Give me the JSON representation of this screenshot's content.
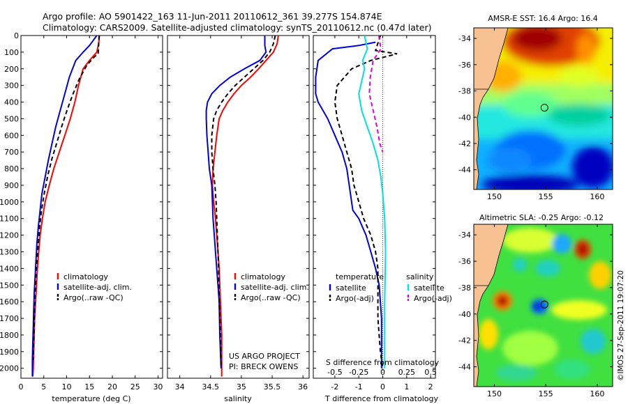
{
  "header": {
    "line1": "Argo profile: AO 5901422_163 11-Jun-2011 20110612_361 39.277S 154.874E",
    "line2": "Climatology: CARS2009. Satellite-adjusted climatology: synTS_20110612.nc (0.47d later)"
  },
  "side_credit": "©IMOS 27-Sep-2011 19:07:20",
  "colors": {
    "climatology": "#ff0000",
    "satellite": "#0000dd",
    "argo": "#000000",
    "salinity_satellite": "#00e0e0",
    "salinity_argo": "#dd00dd",
    "land": "#f7c192"
  },
  "chart_data": [
    {
      "id": "temperature",
      "type": "line",
      "xlabel": "temperature (deg C)",
      "xlim": [
        0,
        31
      ],
      "ylim": [
        0,
        2060
      ],
      "y_reversed": true,
      "xticks": [
        0,
        5,
        10,
        15,
        20,
        25,
        30
      ],
      "yticks": [
        0,
        100,
        200,
        300,
        400,
        500,
        600,
        700,
        800,
        900,
        1000,
        1100,
        1200,
        1300,
        1400,
        1500,
        1600,
        1700,
        1800,
        1900,
        2000
      ],
      "legend": {
        "placement": "lower-center",
        "entries": [
          "climatology",
          "satellite-adj. clim.",
          "Argo(..raw -QC)"
        ]
      },
      "series": [
        {
          "name": "climatology",
          "color": "#ff0000",
          "dash": "solid",
          "x": [
            17.2,
            17.0,
            16.6,
            15.0,
            13.6,
            12.6,
            11.8,
            10.8,
            9.6,
            8.4,
            7.2,
            6.2,
            5.3,
            4.7,
            4.2,
            3.9,
            3.6,
            3.4,
            3.2,
            3.0,
            2.9,
            2.8,
            2.7,
            2.6
          ],
          "y": [
            0,
            50,
            100,
            150,
            200,
            300,
            400,
            500,
            600,
            700,
            800,
            900,
            1000,
            1100,
            1200,
            1300,
            1400,
            1500,
            1600,
            1700,
            1800,
            1900,
            2000,
            2050
          ]
        },
        {
          "name": "satellite-adj. clim.",
          "color": "#0000dd",
          "dash": "solid",
          "x": [
            16.6,
            15.8,
            15.0,
            13.6,
            12.0,
            10.6,
            9.6,
            8.6,
            7.6,
            6.8,
            6.0,
            5.3,
            4.6,
            4.2,
            3.8,
            3.5,
            3.3,
            3.1,
            2.9,
            2.8,
            2.7,
            2.6,
            2.5,
            2.5
          ],
          "y": [
            0,
            30,
            60,
            100,
            150,
            250,
            350,
            450,
            550,
            650,
            750,
            850,
            950,
            1050,
            1150,
            1250,
            1350,
            1450,
            1550,
            1650,
            1750,
            1850,
            1950,
            2050
          ]
        },
        {
          "name": "Argo(..raw -QC)",
          "color": "#000000",
          "dash": "dashed",
          "x": [
            17.1,
            17.0,
            16.9,
            16.0,
            14.4,
            12.8,
            11.4,
            10.2,
            9.0,
            7.9,
            6.8,
            5.9,
            5.1,
            4.5,
            4.1,
            3.8,
            3.5,
            3.3,
            3.1,
            3.0,
            2.9,
            2.8,
            2.7
          ],
          "y": [
            0,
            60,
            110,
            130,
            180,
            260,
            350,
            440,
            540,
            640,
            740,
            840,
            950,
            1050,
            1150,
            1250,
            1350,
            1450,
            1550,
            1650,
            1750,
            1850,
            1950
          ]
        }
      ]
    },
    {
      "id": "salinity",
      "type": "line",
      "xlabel": "salinity",
      "xlim": [
        33.8,
        36.1
      ],
      "ylim": [
        0,
        2060
      ],
      "y_reversed": true,
      "xticks": [
        34,
        34.5,
        35,
        35.5,
        36
      ],
      "legend": {
        "placement": "lower-right",
        "entries": [
          "climatology",
          "satellite-adj. clim.",
          "Argo(..raw -QC)"
        ]
      },
      "annotation": [
        "US ARGO PROJECT",
        "PI: BRECK OWENS"
      ],
      "series": [
        {
          "name": "climatology",
          "color": "#ff0000",
          "dash": "solid",
          "x": [
            35.6,
            35.58,
            35.52,
            35.4,
            35.28,
            35.15,
            35.0,
            34.88,
            34.78,
            34.7,
            34.64,
            34.6,
            34.57,
            34.54,
            34.53,
            34.55,
            34.58,
            34.6,
            34.62,
            34.64,
            34.65,
            34.66,
            34.67,
            34.68,
            34.68
          ],
          "y": [
            0,
            50,
            100,
            150,
            200,
            250,
            300,
            350,
            400,
            450,
            500,
            600,
            700,
            800,
            900,
            1000,
            1100,
            1200,
            1300,
            1400,
            1500,
            1600,
            1700,
            1800,
            2050
          ]
        },
        {
          "name": "satellite-adj. clim.",
          "color": "#0000dd",
          "dash": "solid",
          "x": [
            35.38,
            35.38,
            35.4,
            35.3,
            35.05,
            34.82,
            34.65,
            34.52,
            34.45,
            34.43,
            34.43,
            34.44,
            34.46,
            34.48,
            34.52,
            34.53,
            34.54,
            34.56,
            34.58,
            34.6,
            34.62,
            34.64,
            34.65,
            34.67
          ],
          "y": [
            0,
            60,
            100,
            150,
            200,
            250,
            300,
            350,
            400,
            450,
            500,
            600,
            700,
            800,
            900,
            1000,
            1100,
            1200,
            1300,
            1400,
            1500,
            1600,
            1800,
            2000
          ]
        },
        {
          "name": "Argo(..raw -QC)",
          "color": "#000000",
          "dash": "dashed",
          "x": [
            35.55,
            35.52,
            35.46,
            35.35,
            35.2,
            35.05,
            34.9,
            34.78,
            34.68,
            34.6,
            34.55,
            34.52,
            34.52,
            34.54,
            34.57,
            34.59,
            34.61,
            34.63,
            34.64,
            34.66,
            34.67
          ],
          "y": [
            0,
            50,
            100,
            150,
            200,
            250,
            300,
            350,
            400,
            450,
            500,
            600,
            700,
            800,
            900,
            1000,
            1200,
            1400,
            1600,
            1800,
            2000
          ]
        }
      ]
    },
    {
      "id": "difference",
      "type": "line",
      "xlabel": "T difference from climatology",
      "xlabel2": "S difference from climatology",
      "xlim": [
        -2.9,
        2.2
      ],
      "ylim": [
        0,
        2060
      ],
      "y_reversed": true,
      "xticks": [
        -2,
        -1,
        0,
        1,
        2
      ],
      "xticks2_labels": [
        "-0.5",
        "-0.25",
        "0",
        "0.25",
        "0.5"
      ],
      "xticks2_values": [
        -0.5,
        -0.25,
        0,
        0.25,
        0.5
      ],
      "legend_groups": [
        {
          "title": "temperature",
          "entries": [
            "satellite",
            "Argo(-adj)"
          ]
        },
        {
          "title": "salinity",
          "entries": [
            "satellite",
            "Argo(-adj)"
          ]
        }
      ],
      "series": [
        {
          "name": "temperature satellite",
          "color": "#0000dd",
          "dash": "solid",
          "x": [
            -0.3,
            -1.0,
            -2.1,
            -2.7,
            -2.8,
            -2.8,
            -2.7,
            -2.3,
            -2.0,
            -1.7,
            -1.5,
            -1.4,
            -1.3,
            -1.25,
            -1.0,
            -0.7,
            -0.5,
            -0.3,
            -0.15,
            -0.1,
            -0.05,
            -0.05,
            -0.05
          ],
          "y": [
            40,
            60,
            80,
            150,
            250,
            350,
            400,
            500,
            600,
            700,
            800,
            900,
            1000,
            1050,
            1100,
            1200,
            1300,
            1400,
            1500,
            1600,
            1700,
            1800,
            2000
          ]
        },
        {
          "name": "temperature Argo(-adj)",
          "color": "#000000",
          "dash": "dashed",
          "x": [
            -0.1,
            -0.3,
            0.6,
            -0.5,
            -1.3,
            -1.9,
            -2.0,
            -1.9,
            -1.7,
            -1.5,
            -1.3,
            -1.2,
            -1.1,
            -1.0,
            -0.8,
            -0.5,
            -0.3,
            -0.2,
            -0.2,
            -0.2,
            -0.1,
            0.0
          ],
          "y": [
            0,
            90,
            110,
            150,
            200,
            300,
            400,
            500,
            600,
            700,
            800,
            900,
            950,
            1000,
            1100,
            1200,
            1300,
            1400,
            1500,
            1700,
            1900,
            2000
          ]
        },
        {
          "name": "salinity satellite",
          "color": "#00e0e0",
          "dash": "solid",
          "x": [
            -0.19,
            -0.16,
            -0.21,
            -0.19,
            -0.25,
            -0.22,
            -0.16,
            -0.1,
            -0.05,
            -0.02,
            0.0,
            0.02,
            0.03,
            0.02,
            0.02
          ],
          "y": [
            0,
            80,
            150,
            200,
            350,
            450,
            550,
            650,
            750,
            850,
            950,
            1100,
            1300,
            1600,
            2000
          ]
        },
        {
          "name": "salinity Argo(-adj)",
          "color": "#dd00dd",
          "dash": "dashed",
          "x": [
            -0.04,
            -0.02,
            -0.1,
            -0.13,
            -0.14,
            -0.1,
            -0.06,
            -0.03,
            0.0
          ],
          "y": [
            0,
            80,
            150,
            250,
            350,
            450,
            550,
            650,
            700
          ]
        }
      ]
    },
    {
      "id": "sst_map",
      "type": "heatmap",
      "title": "AMSR-E SST: 16.4 Argo: 16.4",
      "xticks": [
        150,
        155,
        160
      ],
      "yticks": [
        -34,
        -36,
        -38,
        -40,
        -42,
        -44
      ],
      "xlim": [
        148,
        161.5
      ],
      "ylim": [
        -45.5,
        -33.2
      ],
      "float_position": {
        "lon": 154.874,
        "lat": -39.277
      }
    },
    {
      "id": "sla_map",
      "type": "heatmap",
      "title": "Altimetric SLA: -0.25 Argo: -0.12",
      "xticks": [
        150,
        155,
        160
      ],
      "yticks": [
        -34,
        -36,
        -38,
        -40,
        -42,
        -44
      ],
      "xlim": [
        148,
        161.5
      ],
      "ylim": [
        -45.5,
        -33.2
      ],
      "float_position": {
        "lon": 154.874,
        "lat": -39.277
      }
    }
  ]
}
